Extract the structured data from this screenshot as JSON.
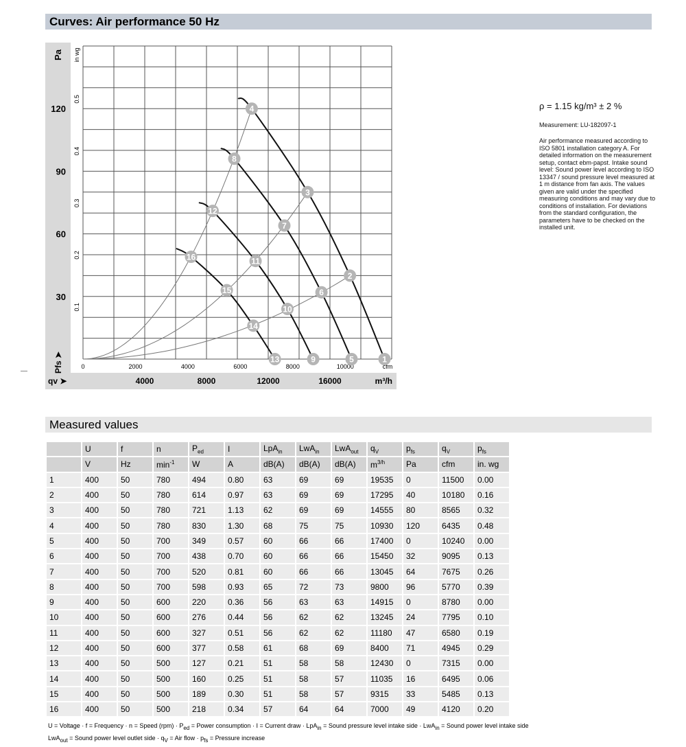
{
  "title": "Curves: Air performance 50 Hz",
  "section2": "Measured values",
  "side": {
    "rho": "ρ = 1.15 kg/m³ ± 2 %",
    "measurement": "Measurement: LU-182097-1",
    "note": "Air performance measured according to ISO 5801 installation category A. For detailed information on the measurement setup, contact ebm-papst. Intake sound level: Sound power level according to ISO 13347 / sound pressure level measured at 1 m distance from fan axis. The values given are valid under the specified measuring conditions and may vary due to conditions of installation. For deviations from the standard configuration, the parameters have to be checked on the installed unit."
  },
  "chart_data": {
    "type": "line",
    "xlabel": "qv",
    "xunit": "m³/h",
    "xlim": [
      0,
      20000
    ],
    "xticks": [
      4000,
      8000,
      12000,
      16000
    ],
    "x2unit": "cfm",
    "x2ticks": [
      0,
      2000,
      4000,
      6000,
      8000,
      10000
    ],
    "ylabel": "Pa",
    "ylabel_bottom": "Pfs",
    "ylim": [
      0,
      150
    ],
    "yticks": [
      30,
      60,
      90,
      120
    ],
    "y2unit": "in wg",
    "y2ticks": [
      0.1,
      0.2,
      0.3,
      0.4,
      0.5
    ],
    "grid": true,
    "speed_curves": [
      {
        "points": [
          [
            10050,
            125
          ],
          [
            10930,
            120
          ],
          [
            14555,
            80
          ],
          [
            17295,
            40
          ],
          [
            19535,
            0
          ]
        ]
      },
      {
        "points": [
          [
            8930,
            101
          ],
          [
            9800,
            96
          ],
          [
            13045,
            64
          ],
          [
            15450,
            32
          ],
          [
            17400,
            0
          ]
        ]
      },
      {
        "points": [
          [
            7510,
            75
          ],
          [
            8400,
            71
          ],
          [
            11180,
            47
          ],
          [
            13245,
            24
          ],
          [
            14915,
            0
          ]
        ]
      },
      {
        "points": [
          [
            6040,
            53
          ],
          [
            7000,
            49
          ],
          [
            9315,
            33
          ],
          [
            11035,
            16
          ],
          [
            12430,
            0
          ]
        ]
      }
    ],
    "system_curves": [
      {
        "through": [
          10930,
          120
        ]
      },
      {
        "through": [
          14555,
          80
        ]
      },
      {
        "through": [
          17295,
          40
        ]
      }
    ],
    "operating_points": [
      {
        "label": "1",
        "q": 19535,
        "p": 0
      },
      {
        "label": "2",
        "q": 17295,
        "p": 40
      },
      {
        "label": "3",
        "q": 14555,
        "p": 80
      },
      {
        "label": "4",
        "q": 10930,
        "p": 120
      },
      {
        "label": "5",
        "q": 17400,
        "p": 0
      },
      {
        "label": "6",
        "q": 15450,
        "p": 32
      },
      {
        "label": "7",
        "q": 13045,
        "p": 64
      },
      {
        "label": "8",
        "q": 9800,
        "p": 96
      },
      {
        "label": "9",
        "q": 14915,
        "p": 0
      },
      {
        "label": "10",
        "q": 13245,
        "p": 24
      },
      {
        "label": "11",
        "q": 11180,
        "p": 47
      },
      {
        "label": "12",
        "q": 8400,
        "p": 71
      },
      {
        "label": "13",
        "q": 12430,
        "p": 0
      },
      {
        "label": "14",
        "q": 11035,
        "p": 16
      },
      {
        "label": "15",
        "q": 9315,
        "p": 33
      },
      {
        "label": "16",
        "q": 7000,
        "p": 49
      }
    ]
  },
  "table": {
    "headers": [
      "",
      "U",
      "f",
      "n",
      "P|ed",
      "I",
      "LpA|in",
      "LwA|in",
      "LwA|out",
      "q|V",
      "p|fs",
      "q|V",
      "p|fs"
    ],
    "units": [
      "",
      "V",
      "Hz",
      "min^-1",
      "W",
      "A",
      "dB(A)",
      "dB(A)",
      "dB(A)",
      "m^3/h",
      "Pa",
      "cfm",
      "in. wg"
    ],
    "rows": [
      [
        "1",
        "400",
        "50",
        "780",
        "494",
        "0.80",
        "63",
        "69",
        "69",
        "19535",
        "0",
        "11500",
        "0.00"
      ],
      [
        "2",
        "400",
        "50",
        "780",
        "614",
        "0.97",
        "63",
        "69",
        "69",
        "17295",
        "40",
        "10180",
        "0.16"
      ],
      [
        "3",
        "400",
        "50",
        "780",
        "721",
        "1.13",
        "62",
        "69",
        "69",
        "14555",
        "80",
        "8565",
        "0.32"
      ],
      [
        "4",
        "400",
        "50",
        "780",
        "830",
        "1.30",
        "68",
        "75",
        "75",
        "10930",
        "120",
        "6435",
        "0.48"
      ],
      [
        "5",
        "400",
        "50",
        "700",
        "349",
        "0.57",
        "60",
        "66",
        "66",
        "17400",
        "0",
        "10240",
        "0.00"
      ],
      [
        "6",
        "400",
        "50",
        "700",
        "438",
        "0.70",
        "60",
        "66",
        "66",
        "15450",
        "32",
        "9095",
        "0.13"
      ],
      [
        "7",
        "400",
        "50",
        "700",
        "520",
        "0.81",
        "60",
        "66",
        "66",
        "13045",
        "64",
        "7675",
        "0.26"
      ],
      [
        "8",
        "400",
        "50",
        "700",
        "598",
        "0.93",
        "65",
        "72",
        "73",
        "9800",
        "96",
        "5770",
        "0.39"
      ],
      [
        "9",
        "400",
        "50",
        "600",
        "220",
        "0.36",
        "56",
        "63",
        "63",
        "14915",
        "0",
        "8780",
        "0.00"
      ],
      [
        "10",
        "400",
        "50",
        "600",
        "276",
        "0.44",
        "56",
        "62",
        "62",
        "13245",
        "24",
        "7795",
        "0.10"
      ],
      [
        "11",
        "400",
        "50",
        "600",
        "327",
        "0.51",
        "56",
        "62",
        "62",
        "11180",
        "47",
        "6580",
        "0.19"
      ],
      [
        "12",
        "400",
        "50",
        "600",
        "377",
        "0.58",
        "61",
        "68",
        "69",
        "8400",
        "71",
        "4945",
        "0.29"
      ],
      [
        "13",
        "400",
        "50",
        "500",
        "127",
        "0.21",
        "51",
        "58",
        "58",
        "12430",
        "0",
        "7315",
        "0.00"
      ],
      [
        "14",
        "400",
        "50",
        "500",
        "160",
        "0.25",
        "51",
        "58",
        "57",
        "11035",
        "16",
        "6495",
        "0.06"
      ],
      [
        "15",
        "400",
        "50",
        "500",
        "189",
        "0.30",
        "51",
        "58",
        "57",
        "9315",
        "33",
        "5485",
        "0.13"
      ],
      [
        "16",
        "400",
        "50",
        "500",
        "218",
        "0.34",
        "57",
        "64",
        "64",
        "7000",
        "49",
        "4120",
        "0.20"
      ]
    ]
  },
  "legend": [
    "U = Voltage · f = Frequency · n = Speed (rpm) · P_ed = Power consumption · I = Current draw · LpA_in = Sound pressure level intake side · LwA_in = Sound power level intake side",
    "LwA_out = Sound power level outlet side · q_V = Air flow · p_fs = Pressure increase"
  ]
}
